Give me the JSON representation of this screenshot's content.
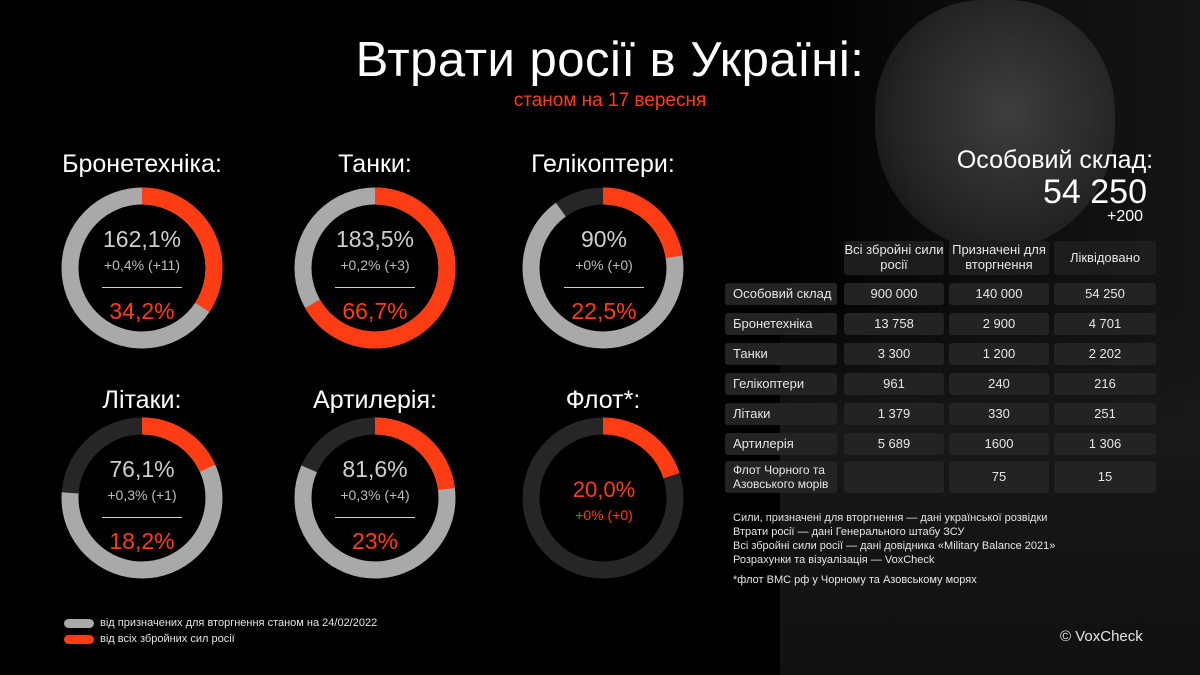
{
  "title": "Втрати росії в Україні:",
  "subtitle": "станом на 17 вересня",
  "colors": {
    "gray": "#a9a9a9",
    "orange": "#ff3d14",
    "track": "#262626"
  },
  "chart_data": {
    "type": "pie",
    "donuts": [
      {
        "category": "Бронетехніка:",
        "top": "162,1%",
        "change": "+0,4% (+11)",
        "bottom": "34,2%",
        "gray_pct": 162.1,
        "orange_pct": 34.2
      },
      {
        "category": "Танки:",
        "top": "183,5%",
        "change": "+0,2% (+3)",
        "bottom": "66,7%",
        "gray_pct": 183.5,
        "orange_pct": 66.7
      },
      {
        "category": "Гелікоптери:",
        "top": "90%",
        "change": "+0% (+0)",
        "bottom": "22,5%",
        "gray_pct": 90,
        "orange_pct": 22.5
      },
      {
        "category": "Літаки:",
        "top": "76,1%",
        "change": "+0,3% (+1)",
        "bottom": "18,2%",
        "gray_pct": 76.1,
        "orange_pct": 18.2
      },
      {
        "category": "Артилерія:",
        "top": "81,6%",
        "change": "+0,3% (+4)",
        "bottom": "23%",
        "gray_pct": 81.6,
        "orange_pct": 23
      },
      {
        "category": "Флот*:",
        "top": "",
        "change": "+0% (+0)",
        "bottom": "20,0%",
        "gray_pct": 0,
        "orange_pct": 20
      }
    ]
  },
  "personnel": {
    "title": "Особовий склад:",
    "total": "54 250",
    "delta": "+200"
  },
  "table": {
    "headers": [
      "Всі збройні сили росії",
      "Призначені для вторгнення",
      "Ліквідовано"
    ],
    "rows": [
      {
        "label": "Особовий склад",
        "all": "900 000",
        "assigned": "140 000",
        "destroyed": "54 250"
      },
      {
        "label": "Бронетехніка",
        "all": "13 758",
        "assigned": "2 900",
        "destroyed": "4 701"
      },
      {
        "label": "Танки",
        "all": "3 300",
        "assigned": "1 200",
        "destroyed": "2 202"
      },
      {
        "label": "Гелікоптери",
        "all": "961",
        "assigned": "240",
        "destroyed": "216"
      },
      {
        "label": "Літаки",
        "all": "1 379",
        "assigned": "330",
        "destroyed": "251"
      },
      {
        "label": "Артилерія",
        "all": "5 689",
        "assigned": "1600",
        "destroyed": "1 306"
      },
      {
        "label": "Флот Чорного та Азовського морів",
        "all": "",
        "assigned": "75",
        "destroyed": "15"
      }
    ]
  },
  "notes": [
    "Сили, призначені для вторгнення  — дані української розвідки",
    "Втрати росії — дані Генерального штабу ЗСУ",
    "Всі збройні сили росії — дані довідника «Military Balance 2021»",
    "Розрахунки та візуалізація — VoxCheck"
  ],
  "footnote": "*флот ВМС рф у Чорному та Азовському морях",
  "legend": [
    {
      "label": "від призначених для вторгнення станом на 24/02/2022",
      "color": "#a9a9a9"
    },
    {
      "label": "від всіх збройних сил росії",
      "color": "#ff3d14"
    }
  ],
  "copyright": "© VoxCheck"
}
